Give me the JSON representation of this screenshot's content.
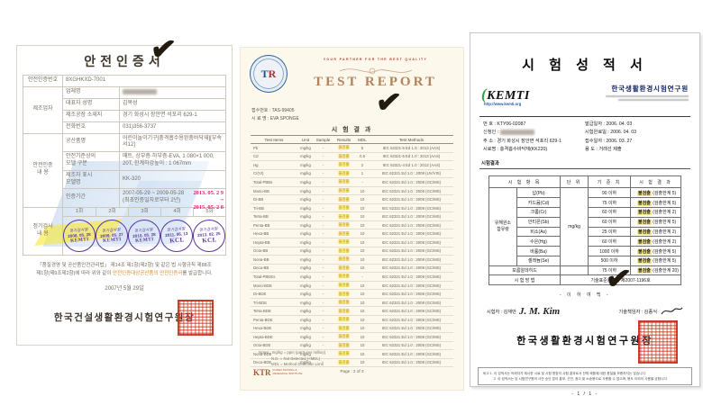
{
  "checkmark": "✔",
  "left_cert": {
    "title": "안전인증서",
    "cert_no_label": "안전인증번호",
    "cert_no": "8XGHKXD-7001",
    "maker_group_label": "제조업자",
    "maker_rows": [
      {
        "label": "업체명",
        "value": "",
        "blur": true
      },
      {
        "label": "대표자 성명",
        "value": "김복성"
      },
      {
        "label": "제조공장 소재지",
        "value": "경기 화성시 장안면 석포리 629-1"
      },
      {
        "label": "전화번호",
        "value": "031)356-3737"
      }
    ],
    "cert_group_label": "안전인증\n내    용",
    "cert_rows": [
      {
        "label": "공산품명",
        "value": "어린이놀이기구[충격흡수용완충바닥재][부속서12]"
      },
      {
        "label": "안전기준상의\n모델 구분",
        "value": "매트, 상부층·하부층-EVA, 1 080×1 000, 20T, 한계하강높이 : 1 067mm"
      },
      {
        "label": "제조자 표시\n모델명",
        "value": "KK-320"
      },
      {
        "label": "인증기간",
        "value": "2007-05-29 ~ 2009-05-28 (최초인증일자로부터 2년)",
        "period": true
      }
    ],
    "stamp_date_top": "2013. 05. 2 9",
    "stamp_date_mid": "~",
    "stamp_date_bottom": "2015. 05. 2 8",
    "inspection_group_label": "정기검사\n내    용",
    "rounds": [
      "1회",
      "2회",
      "3회",
      "4회",
      "5회"
    ],
    "stamp_top_text": "정기검사필",
    "stamps": [
      {
        "date": "2008. 05. 28",
        "org": "KEMTI"
      },
      {
        "date": "2009. 05. 27",
        "org": "KEMTI"
      },
      {
        "date": "2010. 05. 28",
        "org": "KEMTI"
      },
      {
        "date": "2011. 06. 13",
        "org": "KCL"
      },
      {
        "date": "2013. 02. 25",
        "org": "KCL"
      }
    ],
    "legal_line1": "「품질경영 및 공산품안전관리법」 제14조 제1항(제2항) 및 같은 법 시행규칙 제88조",
    "legal_line2_pre": "제1항(제9조제2항)에 따라 위와 같이 ",
    "legal_line2_hl": "안전인증대상공산품의 안전인증서",
    "legal_line2_post": "를 발급합니다.",
    "issue_date": "2007년 5월 29일",
    "issuer": "한국건설생활환경시험연구원장"
  },
  "mid_report": {
    "logo_t": "T",
    "logo_r": "R",
    "tagline": "YOUR PARTNER FOR THE BEST QUALITY",
    "title": "TEST REPORT",
    "receipt_label": "접수번호 : ",
    "receipt_no": "TAS-99405",
    "sample_label": "시 료 명 : ",
    "sample_name": "EVA SPONGE",
    "table_title": "시 험 결 과",
    "headers": [
      "Test Items",
      "Unit",
      "Sample",
      "Results",
      "MDL",
      "Test Methods"
    ],
    "unit": "mg/kg",
    "sample": "-",
    "result": "불검출",
    "rows": [
      {
        "name": "Pb",
        "mdl": "5",
        "method": "IEC 62321-5 Ed 1.0 : 2013 (AAS)"
      },
      {
        "name": "Cd",
        "mdl": "0.5",
        "method": "IEC 62321-5 Ed 1.0 : 2013 (AAS)"
      },
      {
        "name": "Hg",
        "mdl": "2",
        "method": "IEC 62321-4 Ed 1.0 : 2013 (AAS)"
      },
      {
        "name": "Cr(VI)",
        "mdl": "1",
        "method": "IEC 62321 Ed 1.0 : 2008 (UV/VIS)"
      },
      {
        "name": "Total-PBBs",
        "mdl": "-",
        "method": "IEC 62321 Ed 1.0 : 2008 (GC/MS)"
      },
      {
        "name": "Mono-BB",
        "mdl": "10",
        "method": "IEC 62321 Ed 1.0 : 2008 (GC/MS)"
      },
      {
        "name": "Di-BB",
        "mdl": "10",
        "method": "IEC 62321 Ed 1.0 : 2008 (GC/MS)"
      },
      {
        "name": "Tri-BB",
        "mdl": "10",
        "method": "IEC 62321 Ed 1.0 : 2008 (GC/MS)"
      },
      {
        "name": "Tetra-BB",
        "mdl": "10",
        "method": "IEC 62321 Ed 1.0 : 2008 (GC/MS)"
      },
      {
        "name": "Penta-BB",
        "mdl": "10",
        "method": "IEC 62321 Ed 1.0 : 2008 (GC/MS)"
      },
      {
        "name": "Hexa-BB",
        "mdl": "10",
        "method": "IEC 62321 Ed 1.0 : 2008 (GC/MS)"
      },
      {
        "name": "Hepta-BB",
        "mdl": "10",
        "method": "IEC 62321 Ed 1.0 : 2008 (GC/MS)"
      },
      {
        "name": "Octa-BB",
        "mdl": "10",
        "method": "IEC 62321 Ed 1.0 : 2008 (GC/MS)"
      },
      {
        "name": "Nona-BB",
        "mdl": "10",
        "method": "IEC 62321 Ed 1.0 : 2008 (GC/MS)"
      },
      {
        "name": "Deca-BB",
        "mdl": "10",
        "method": "IEC 62321 Ed 1.0 : 2008 (GC/MS)"
      },
      {
        "name": "Total-PBDEs",
        "mdl": "-",
        "method": "IEC 62321 Ed 1.0 : 2008 (GC/MS)"
      },
      {
        "name": "Mono-BDE",
        "mdl": "10",
        "method": "IEC 62321 Ed 1.0 : 2008 (GC/MS)"
      },
      {
        "name": "Di-BDE",
        "mdl": "10",
        "method": "IEC 62321 Ed 1.0 : 2008 (GC/MS)"
      },
      {
        "name": "Tri-BDE",
        "mdl": "10",
        "method": "IEC 62321 Ed 1.0 : 2008 (GC/MS)"
      },
      {
        "name": "Tetra-BDE",
        "mdl": "10",
        "method": "IEC 62321 Ed 1.0 : 2008 (GC/MS)"
      },
      {
        "name": "Penta-BDE",
        "mdl": "10",
        "method": "IEC 62321 Ed 1.0 : 2008 (GC/MS)"
      },
      {
        "name": "Hexa-BDE",
        "mdl": "10",
        "method": "IEC 62321 Ed 1.0 : 2008 (GC/MS)"
      },
      {
        "name": "Hepta-BDE",
        "mdl": "10",
        "method": "IEC 62321 Ed 1.0 : 2008 (GC/MS)"
      },
      {
        "name": "Octa-BDE",
        "mdl": "10",
        "method": "IEC 62321 Ed 1.0 : 2008 (GC/MS)"
      },
      {
        "name": "Nona-BDE",
        "mdl": "10",
        "method": "IEC 62321 Ed 1.0 : 2008 (GC/MS)"
      },
      {
        "name": "Deca-BDE",
        "mdl": "10",
        "method": "IEC 62321 Ed 1.0 : 2008 (GC/MS)"
      }
    ],
    "notes": [
      "Notes : mg/kg = ppm (parts per million)",
      "N.D. = Not Detected (<MDL)",
      "MDL = Method Detection Limit"
    ],
    "footer_logo": "KTR",
    "footer_org1": "KOREA TESTING &",
    "footer_org2": "RESEARCH INSTITUTE",
    "page_text": "Page :   2  of  3"
  },
  "right_report": {
    "title": "시 험 성 적 서",
    "logo_paren": "(",
    "logo_text": "KEMTI",
    "logo_url": "http://www.kemti.org",
    "org_name": "한국생활환경시험연구원",
    "fields_left": [
      {
        "label": "번    호 : ",
        "value": "KTY06-02087"
      },
      {
        "label": "신청인 : ",
        "value": "",
        "blur": true
      },
      {
        "label": "주    소 : ",
        "value": "경기 화성시 장안면 석포리 629-1"
      },
      {
        "label": "시료명 : ",
        "value": "충격흡수바닥재(KK220)"
      }
    ],
    "fields_right": [
      {
        "label": "발급일자 : ",
        "value": "2006.  04.  03"
      },
      {
        "label": "시험완료일 : ",
        "value": "2006.  04.  03"
      },
      {
        "label": "접수일자 : ",
        "value": "2006.  03.  27"
      },
      {
        "label": "용    도 : ",
        "value": "거래선 제출"
      }
    ],
    "section_label": "시험결과",
    "headers": [
      "시 험 항 목",
      "단 위",
      "기 준 치",
      "시 험 결 과"
    ],
    "group_label": "유해원소\n함유량",
    "unit": "mg/kg",
    "items": [
      {
        "name": "납(Pb)",
        "limit": "90 이하",
        "result": "불검출",
        "detail": " (검출한계 5)"
      },
      {
        "name": "카드뮴(Cd)",
        "limit": "75 이하",
        "result": "불검출",
        "detail": " (검출한계 5)"
      },
      {
        "name": "크롬(Cr)",
        "limit": "60 이하",
        "result": "불검출",
        "detail": " (검출한계 2)"
      },
      {
        "name": "안티몬(Sb)",
        "limit": "60 이하",
        "result": "불검출",
        "detail": " (검출한계 5)"
      },
      {
        "name": "비소(As)",
        "limit": "25 이하",
        "result": "불검출",
        "detail": " (검출한계 2)"
      },
      {
        "name": "수은(Hg)",
        "limit": "60 이하",
        "result": "불검출",
        "detail": " (검출한계 2)"
      },
      {
        "name": "바륨(Ba)",
        "limit": "1000 이하",
        "result": "불검출",
        "detail": " (검출한계 5)"
      },
      {
        "name": "셀레늄(Se)",
        "limit": "500 이하",
        "result": "불검출",
        "detail": " (검출한계 5)"
      }
    ],
    "formaldehyde": {
      "name": "포름알데히드",
      "limit": "75 이하",
      "result": "불검출",
      "detail": " (검출한계 20)"
    },
    "method_label": "시 험 방 법",
    "method_value": "기술표준원고시 제2007-1196호",
    "blank_notice": "- 이 하 여 백 -",
    "tester_label": "시험자 : 김재만",
    "tester_sig": "J. M. Kim",
    "approver_label": "기술책임자 : 김종식",
    "issuer": "한국생활환경시험연구원장",
    "notes": [
      "비고 1. 이 성적서는 의뢰자가 제시한 시료 및 시험 명칭의 시험 결과로서 전체 제품에 대한 품질을 보증하지는 않습니다.",
      "2. 이 성적서는 당 시험연구원의 사전 승인 없이 홍보, 선전, 광고 및 소송용으로 사용할 수 없으며, 용도 이외의 사용을 금합니다."
    ],
    "page_footer": "- 1 / 1 -"
  }
}
